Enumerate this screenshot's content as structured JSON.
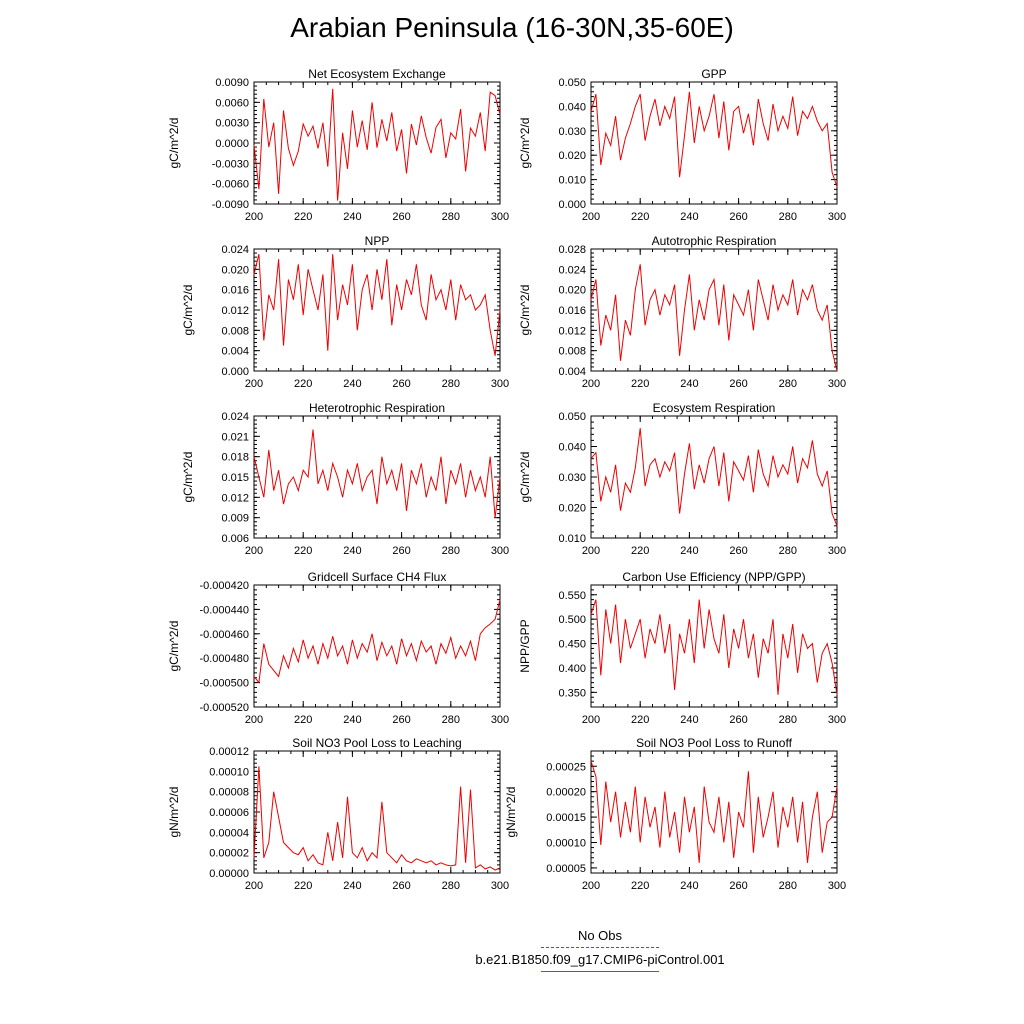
{
  "figure": {
    "title": "Arabian Peninsula (16-30N,35-60E)"
  },
  "legend": {
    "items": [
      {
        "label": "No Obs",
        "color": "#4444ff",
        "style": "dashed"
      },
      {
        "label": "b.e21.B1850.f09_g17.CMIP6-piControl.001",
        "color": "#ee2222",
        "style": "solid"
      }
    ]
  },
  "colors": {
    "series": "#ee0000",
    "axis": "#000000"
  },
  "chart_data": [
    {
      "type": "line",
      "title": "Net Ecosystem Exchange",
      "ylabel": "gC/m^2/d",
      "xlabel": "",
      "xlim": [
        200,
        300
      ],
      "ylim": [
        -0.009,
        0.009
      ],
      "xticks": [
        "200",
        "220",
        "240",
        "260",
        "280",
        "300"
      ],
      "yticks": [
        "-0.0090",
        "-0.0060",
        "-0.0030",
        "0.0000",
        "0.0030",
        "0.0060",
        "0.0090"
      ],
      "x_start": 200,
      "x_step": 2,
      "series": [
        {
          "values": [
            -0.0003,
            -0.0068,
            0.0065,
            -0.0006,
            0.003,
            -0.0075,
            0.0048,
            -0.0008,
            -0.0033,
            -0.0012,
            0.0028,
            0.001,
            0.0025,
            -0.0008,
            0.003,
            -0.0035,
            0.008,
            -0.0085,
            0.0015,
            -0.0038,
            0.0048,
            -0.0006,
            0.0033,
            -0.001,
            0.006,
            -0.0007,
            0.0035,
            0.0003,
            0.0045,
            -0.0012,
            0.002,
            -0.0045,
            0.0028,
            -0.0003,
            0.004,
            0.0008,
            -0.0015,
            0.0023,
            0.0035,
            -0.0022,
            0.0015,
            0.0006,
            0.005,
            -0.0042,
            0.0022,
            0.001,
            0.0045,
            -0.0012,
            0.0075,
            0.007,
            0.0042
          ]
        }
      ]
    },
    {
      "type": "line",
      "title": "GPP",
      "ylabel": "gC/m^2/d",
      "xlabel": "",
      "xlim": [
        200,
        300
      ],
      "ylim": [
        0,
        0.05
      ],
      "xticks": [
        "200",
        "220",
        "240",
        "260",
        "280",
        "300"
      ],
      "yticks": [
        "0.000",
        "0.010",
        "0.020",
        "0.030",
        "0.040",
        "0.050"
      ],
      "x_start": 200,
      "x_step": 2,
      "series": [
        {
          "values": [
            0.038,
            0.045,
            0.016,
            0.029,
            0.024,
            0.036,
            0.018,
            0.027,
            0.033,
            0.04,
            0.045,
            0.026,
            0.036,
            0.043,
            0.032,
            0.04,
            0.035,
            0.044,
            0.011,
            0.028,
            0.046,
            0.025,
            0.04,
            0.03,
            0.036,
            0.045,
            0.027,
            0.042,
            0.022,
            0.038,
            0.04,
            0.029,
            0.037,
            0.024,
            0.043,
            0.033,
            0.026,
            0.041,
            0.03,
            0.036,
            0.031,
            0.044,
            0.028,
            0.038,
            0.035,
            0.04,
            0.034,
            0.03,
            0.033,
            0.013,
            0.007
          ]
        }
      ]
    },
    {
      "type": "line",
      "title": "NPP",
      "ylabel": "gC/m^2/d",
      "xlabel": "",
      "xlim": [
        200,
        300
      ],
      "ylim": [
        0,
        0.024
      ],
      "xticks": [
        "200",
        "220",
        "240",
        "260",
        "280",
        "300"
      ],
      "yticks": [
        "0.000",
        "0.004",
        "0.008",
        "0.012",
        "0.016",
        "0.020",
        "0.024"
      ],
      "x_start": 200,
      "x_step": 2,
      "series": [
        {
          "values": [
            0.019,
            0.023,
            0.006,
            0.015,
            0.012,
            0.022,
            0.005,
            0.018,
            0.014,
            0.021,
            0.011,
            0.02,
            0.016,
            0.012,
            0.019,
            0.004,
            0.023,
            0.01,
            0.017,
            0.013,
            0.021,
            0.008,
            0.016,
            0.019,
            0.012,
            0.02,
            0.014,
            0.022,
            0.009,
            0.017,
            0.012,
            0.018,
            0.015,
            0.021,
            0.013,
            0.01,
            0.019,
            0.014,
            0.016,
            0.012,
            0.018,
            0.01,
            0.017,
            0.014,
            0.015,
            0.012,
            0.013,
            0.015,
            0.008,
            0.003,
            0.012
          ]
        }
      ]
    },
    {
      "type": "line",
      "title": "Autotrophic Respiration",
      "ylabel": "gC/m^2/d",
      "xlabel": "",
      "xlim": [
        200,
        300
      ],
      "ylim": [
        0.004,
        0.028
      ],
      "xticks": [
        "200",
        "220",
        "240",
        "260",
        "280",
        "300"
      ],
      "yticks": [
        "0.004",
        "0.008",
        "0.012",
        "0.016",
        "0.020",
        "0.024",
        "0.028"
      ],
      "x_start": 200,
      "x_step": 2,
      "series": [
        {
          "values": [
            0.018,
            0.022,
            0.009,
            0.015,
            0.012,
            0.019,
            0.006,
            0.014,
            0.011,
            0.02,
            0.025,
            0.013,
            0.018,
            0.02,
            0.015,
            0.019,
            0.017,
            0.021,
            0.007,
            0.016,
            0.023,
            0.012,
            0.018,
            0.014,
            0.02,
            0.022,
            0.013,
            0.021,
            0.01,
            0.019,
            0.017,
            0.015,
            0.02,
            0.012,
            0.022,
            0.018,
            0.014,
            0.021,
            0.016,
            0.019,
            0.017,
            0.022,
            0.015,
            0.02,
            0.018,
            0.021,
            0.016,
            0.014,
            0.017,
            0.008,
            0.004
          ]
        }
      ]
    },
    {
      "type": "line",
      "title": "Heterotrophic Respiration",
      "ylabel": "gC/m^2/d",
      "xlabel": "",
      "xlim": [
        200,
        300
      ],
      "ylim": [
        0.006,
        0.024
      ],
      "xticks": [
        "200",
        "220",
        "240",
        "260",
        "280",
        "300"
      ],
      "yticks": [
        "0.006",
        "0.009",
        "0.012",
        "0.015",
        "0.018",
        "0.021",
        "0.024"
      ],
      "x_start": 200,
      "x_step": 2,
      "series": [
        {
          "values": [
            0.018,
            0.015,
            0.012,
            0.019,
            0.013,
            0.016,
            0.011,
            0.014,
            0.015,
            0.013,
            0.016,
            0.015,
            0.022,
            0.014,
            0.016,
            0.013,
            0.017,
            0.015,
            0.012,
            0.016,
            0.014,
            0.017,
            0.013,
            0.015,
            0.016,
            0.011,
            0.018,
            0.014,
            0.016,
            0.013,
            0.017,
            0.01,
            0.016,
            0.014,
            0.017,
            0.012,
            0.015,
            0.013,
            0.018,
            0.011,
            0.016,
            0.014,
            0.017,
            0.012,
            0.016,
            0.013,
            0.015,
            0.012,
            0.018,
            0.009,
            0.015
          ]
        }
      ]
    },
    {
      "type": "line",
      "title": "Ecosystem Respiration",
      "ylabel": "gC/m^2/d",
      "xlabel": "",
      "xlim": [
        200,
        300
      ],
      "ylim": [
        0.01,
        0.05
      ],
      "xticks": [
        "200",
        "220",
        "240",
        "260",
        "280",
        "300"
      ],
      "yticks": [
        "0.010",
        "0.020",
        "0.030",
        "0.040",
        "0.050"
      ],
      "x_start": 200,
      "x_step": 2,
      "series": [
        {
          "values": [
            0.036,
            0.038,
            0.022,
            0.03,
            0.025,
            0.034,
            0.019,
            0.028,
            0.025,
            0.033,
            0.046,
            0.027,
            0.034,
            0.036,
            0.03,
            0.035,
            0.032,
            0.038,
            0.018,
            0.031,
            0.041,
            0.026,
            0.034,
            0.028,
            0.036,
            0.04,
            0.027,
            0.038,
            0.022,
            0.035,
            0.032,
            0.029,
            0.037,
            0.025,
            0.039,
            0.031,
            0.027,
            0.037,
            0.03,
            0.034,
            0.031,
            0.04,
            0.028,
            0.036,
            0.033,
            0.042,
            0.031,
            0.027,
            0.032,
            0.018,
            0.014
          ]
        }
      ]
    },
    {
      "type": "line",
      "title": "Gridcell Surface CH4 Flux",
      "ylabel": "gC/m^2/d",
      "xlabel": "",
      "xlim": [
        200,
        300
      ],
      "ylim": [
        -0.00052,
        -0.00042
      ],
      "xticks": [
        "200",
        "220",
        "240",
        "260",
        "280",
        "300"
      ],
      "yticks": [
        "-0.000520",
        "-0.000500",
        "-0.000480",
        "-0.000460",
        "-0.000440",
        "-0.000420"
      ],
      "x_start": 200,
      "x_step": 2,
      "series": [
        {
          "values": [
            -0.000495,
            -0.0005,
            -0.000468,
            -0.000485,
            -0.00049,
            -0.000495,
            -0.000478,
            -0.000488,
            -0.000472,
            -0.000483,
            -0.000465,
            -0.00048,
            -0.00047,
            -0.000485,
            -0.000468,
            -0.00048,
            -0.000462,
            -0.000478,
            -0.00047,
            -0.000485,
            -0.000465,
            -0.00048,
            -0.000468,
            -0.000475,
            -0.00046,
            -0.000482,
            -0.000467,
            -0.000478,
            -0.00047,
            -0.000485,
            -0.000464,
            -0.000478,
            -0.000468,
            -0.000482,
            -0.000466,
            -0.000475,
            -0.00047,
            -0.000485,
            -0.000468,
            -0.000476,
            -0.000463,
            -0.00048,
            -0.00047,
            -0.000478,
            -0.000466,
            -0.000482,
            -0.00046,
            -0.000455,
            -0.000452,
            -0.000448,
            -0.000432
          ]
        }
      ]
    },
    {
      "type": "line",
      "title": "Carbon Use Efficiency (NPP/GPP)",
      "ylabel": "NPP/GPP",
      "xlabel": "",
      "xlim": [
        200,
        300
      ],
      "ylim": [
        0.32,
        0.57
      ],
      "xticks": [
        "200",
        "220",
        "240",
        "260",
        "280",
        "300"
      ],
      "yticks": [
        "0.350",
        "0.400",
        "0.450",
        "0.500",
        "0.550"
      ],
      "x_start": 200,
      "x_step": 2,
      "series": [
        {
          "values": [
            0.51,
            0.54,
            0.385,
            0.52,
            0.45,
            0.53,
            0.41,
            0.5,
            0.44,
            0.47,
            0.5,
            0.42,
            0.48,
            0.45,
            0.51,
            0.43,
            0.49,
            0.355,
            0.47,
            0.43,
            0.5,
            0.41,
            0.54,
            0.44,
            0.52,
            0.46,
            0.43,
            0.51,
            0.4,
            0.48,
            0.44,
            0.5,
            0.42,
            0.47,
            0.38,
            0.46,
            0.43,
            0.5,
            0.345,
            0.47,
            0.42,
            0.49,
            0.39,
            0.47,
            0.44,
            0.45,
            0.37,
            0.43,
            0.45,
            0.41,
            0.345
          ]
        }
      ]
    },
    {
      "type": "line",
      "title": "Soil NO3 Pool Loss to Leaching",
      "ylabel": "gN/m^2/d",
      "xlabel": "",
      "xlim": [
        200,
        300
      ],
      "ylim": [
        0,
        0.00012
      ],
      "xticks": [
        "200",
        "220",
        "240",
        "260",
        "280",
        "300"
      ],
      "yticks": [
        "0.00000",
        "0.00002",
        "0.00004",
        "0.00006",
        "0.00008",
        "0.00010",
        "0.00012"
      ],
      "x_start": 200,
      "x_step": 2,
      "series": [
        {
          "values": [
            1.5e-05,
            0.000105,
            1.5e-05,
            3e-05,
            8e-05,
            5.5e-05,
            3e-05,
            2.5e-05,
            2e-05,
            1.8e-05,
            2.5e-05,
            1.2e-05,
            1.8e-05,
            1e-05,
            8e-06,
            4e-05,
            1.2e-05,
            5e-05,
            1.5e-05,
            7.5e-05,
            2e-05,
            1.5e-05,
            2.5e-05,
            1.2e-05,
            2e-05,
            1.5e-05,
            7e-05,
            2e-05,
            1.5e-05,
            1e-05,
            1.8e-05,
            1.2e-05,
            1e-05,
            1.4e-05,
            1.2e-05,
            1e-05,
            1.2e-05,
            8e-06,
            1e-05,
            8e-06,
            7e-06,
            8e-06,
            8.5e-05,
            1e-05,
            8.2e-05,
            5e-06,
            8e-06,
            4e-06,
            6e-06,
            3e-06,
            5e-06
          ]
        }
      ]
    },
    {
      "type": "line",
      "title": "Soil NO3 Pool Loss to Runoff",
      "ylabel": "gN/m^2/d",
      "xlabel": "",
      "xlim": [
        200,
        300
      ],
      "ylim": [
        4e-05,
        0.00028
      ],
      "xticks": [
        "200",
        "220",
        "240",
        "260",
        "280",
        "300"
      ],
      "yticks": [
        "0.00005",
        "0.00010",
        "0.00015",
        "0.00020",
        "0.00025"
      ],
      "x_start": 200,
      "x_step": 2,
      "series": [
        {
          "values": [
            0.00026,
            0.00023,
            9.5e-05,
            0.00022,
            0.00014,
            0.0002,
            0.00011,
            0.00018,
            0.00012,
            0.00021,
            0.0001,
            0.00019,
            0.00013,
            0.00017,
            9e-05,
            0.0002,
            0.00011,
            0.00016,
            8e-05,
            0.00019,
            0.00012,
            0.00017,
            6e-05,
            0.00021,
            0.00014,
            0.00012,
            0.00019,
            0.0001,
            0.00018,
            7e-05,
            0.00016,
            0.00013,
            0.00024,
            8e-05,
            0.00019,
            0.00011,
            0.00015,
            0.0002,
            9e-05,
            0.00017,
            0.00013,
            0.00019,
            0.0001,
            0.00018,
            6e-05,
            0.00015,
            0.0002,
            8e-05,
            0.00014,
            0.00015,
            0.00021
          ]
        }
      ]
    }
  ]
}
